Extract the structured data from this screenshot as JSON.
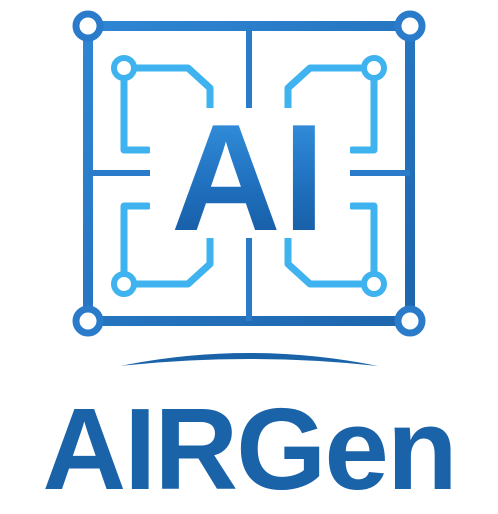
{
  "logo": {
    "emblem_text": "AI",
    "brand_name": "AIRGen",
    "emblem_icon": "circuit-chip-icon",
    "colors": {
      "brand_blue": "#1a63a8",
      "frame_blue": "#2a7ccb",
      "trace_light_blue": "#3fb3f0",
      "background": "#ffffff"
    }
  }
}
